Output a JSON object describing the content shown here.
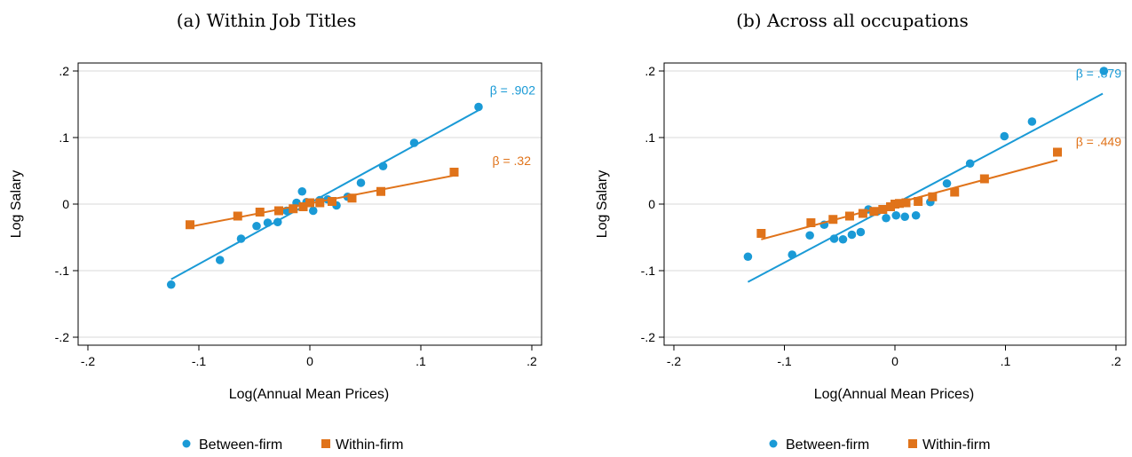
{
  "chart_data": [
    {
      "type": "scatter",
      "title": "(a) Within Job Titles",
      "xlabel": "Log(Annual Mean Prices)",
      "ylabel": "Log Salary",
      "xlim": [
        -0.2,
        0.2
      ],
      "ylim": [
        -0.2,
        0.2
      ],
      "xticks": [
        -0.2,
        -0.1,
        0,
        0.1,
        0.2
      ],
      "xtick_labels": [
        "-.2",
        "-.1",
        "0",
        ".1",
        ".2"
      ],
      "yticks": [
        -0.2,
        -0.1,
        0,
        0.1,
        0.2
      ],
      "ytick_labels": [
        "-.2",
        "-.1",
        "0",
        ".1",
        ".2"
      ],
      "grid": "horizontal",
      "legend_position": "bottom",
      "series": [
        {
          "name": "Between-firm",
          "color": "#1a9ad6",
          "marker": "circle",
          "beta_label": "β = .902",
          "fit": [
            [
              -0.125,
              -0.113
            ],
            [
              0.152,
              0.141
            ]
          ],
          "points": [
            [
              -0.125,
              -0.121
            ],
            [
              -0.081,
              -0.084
            ],
            [
              -0.062,
              -0.052
            ],
            [
              -0.048,
              -0.033
            ],
            [
              -0.038,
              -0.028
            ],
            [
              -0.029,
              -0.027
            ],
            [
              -0.021,
              -0.01
            ],
            [
              -0.012,
              0.002
            ],
            [
              -0.007,
              0.019
            ],
            [
              -0.003,
              0.003
            ],
            [
              0.003,
              -0.01
            ],
            [
              0.009,
              0.006
            ],
            [
              0.016,
              0.007
            ],
            [
              0.024,
              -0.002
            ],
            [
              0.034,
              0.011
            ],
            [
              0.046,
              0.032
            ],
            [
              0.066,
              0.057
            ],
            [
              0.094,
              0.092
            ],
            [
              0.152,
              0.146
            ]
          ]
        },
        {
          "name": "Within-firm",
          "color": "#e0731a",
          "marker": "square",
          "beta_label": "β = .32",
          "fit": [
            [
              -0.108,
              -0.034
            ],
            [
              0.13,
              0.043
            ]
          ],
          "points": [
            [
              -0.108,
              -0.031
            ],
            [
              -0.065,
              -0.018
            ],
            [
              -0.045,
              -0.012
            ],
            [
              -0.028,
              -0.01
            ],
            [
              -0.015,
              -0.007
            ],
            [
              -0.006,
              -0.004
            ],
            [
              0.0,
              0.002
            ],
            [
              0.009,
              0.002
            ],
            [
              0.02,
              0.004
            ],
            [
              0.038,
              0.009
            ],
            [
              0.064,
              0.019
            ],
            [
              0.13,
              0.048
            ]
          ]
        }
      ]
    },
    {
      "type": "scatter",
      "title": "(b) Across all occupations",
      "xlabel": "Log(Annual Mean Prices)",
      "ylabel": "Log Salary",
      "xlim": [
        -0.2,
        0.2
      ],
      "ylim": [
        -0.2,
        0.2
      ],
      "xticks": [
        -0.2,
        -0.1,
        0,
        0.1,
        0.2
      ],
      "xtick_labels": [
        "-.2",
        "-.1",
        "0",
        ".1",
        ".2"
      ],
      "yticks": [
        -0.2,
        -0.1,
        0,
        0.1,
        0.2
      ],
      "ytick_labels": [
        "-.2",
        "-.1",
        "0",
        ".1",
        ".2"
      ],
      "grid": "horizontal",
      "legend_position": "bottom",
      "series": [
        {
          "name": "Between-firm",
          "color": "#1a9ad6",
          "marker": "circle",
          "beta_label": "β = .879",
          "fit": [
            [
              -0.133,
              -0.117
            ],
            [
              0.188,
              0.166
            ]
          ],
          "points": [
            [
              -0.133,
              -0.079
            ],
            [
              -0.093,
              -0.076
            ],
            [
              -0.077,
              -0.047
            ],
            [
              -0.064,
              -0.031
            ],
            [
              -0.055,
              -0.052
            ],
            [
              -0.047,
              -0.053
            ],
            [
              -0.039,
              -0.046
            ],
            [
              -0.031,
              -0.042
            ],
            [
              -0.024,
              -0.008
            ],
            [
              -0.016,
              -0.011
            ],
            [
              -0.008,
              -0.021
            ],
            [
              0.001,
              -0.017
            ],
            [
              0.009,
              -0.019
            ],
            [
              0.019,
              -0.017
            ],
            [
              0.032,
              0.003
            ],
            [
              0.047,
              0.031
            ],
            [
              0.068,
              0.061
            ],
            [
              0.099,
              0.102
            ],
            [
              0.124,
              0.124
            ],
            [
              0.189,
              0.2
            ]
          ]
        },
        {
          "name": "Within-firm",
          "color": "#e0731a",
          "marker": "square",
          "beta_label": "β = .449",
          "fit": [
            [
              -0.121,
              -0.053
            ],
            [
              0.147,
              0.066
            ]
          ],
          "points": [
            [
              -0.121,
              -0.044
            ],
            [
              -0.076,
              -0.028
            ],
            [
              -0.056,
              -0.023
            ],
            [
              -0.041,
              -0.018
            ],
            [
              -0.029,
              -0.014
            ],
            [
              -0.019,
              -0.011
            ],
            [
              -0.011,
              -0.008
            ],
            [
              -0.004,
              -0.004
            ],
            [
              0.0,
              0.0
            ],
            [
              0.004,
              0.001
            ],
            [
              0.01,
              0.002
            ],
            [
              0.021,
              0.004
            ],
            [
              0.034,
              0.011
            ],
            [
              0.054,
              0.018
            ],
            [
              0.081,
              0.038
            ],
            [
              0.147,
              0.078
            ]
          ]
        }
      ]
    }
  ]
}
